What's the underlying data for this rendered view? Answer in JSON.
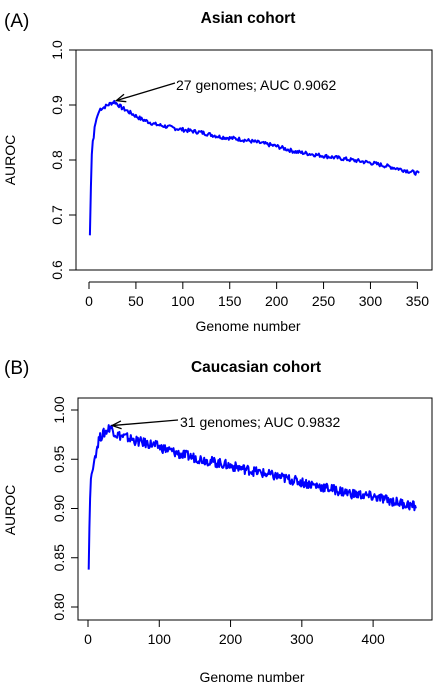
{
  "chart_data": [
    {
      "type": "line",
      "panel_label": "(A)",
      "title": "Asian cohort",
      "xlabel": "Genome number",
      "ylabel": "AUROC",
      "xlim": [
        0,
        356
      ],
      "ylim": [
        0.6,
        1.0
      ],
      "xticks": [
        0,
        50,
        100,
        150,
        200,
        250,
        300,
        350
      ],
      "yticks": [
        0.6,
        0.7,
        0.8,
        0.9,
        1.0
      ],
      "xtick_labels": [
        "0",
        "50",
        "100",
        "150",
        "200",
        "250",
        "300",
        "350"
      ],
      "ytick_labels": [
        "0.6",
        "0.7",
        "0.8",
        "0.9",
        "1.0"
      ],
      "grid": false,
      "line_color": "#0000ff",
      "annotation": {
        "text": "27 genomes; AUC 0.9062",
        "x": 27,
        "y": 0.9062
      },
      "series": [
        {
          "x": [
            1,
            2,
            3,
            4,
            5,
            6,
            8,
            10,
            12,
            15,
            20,
            27,
            35,
            45,
            55,
            70,
            85,
            100,
            120,
            140,
            160,
            180,
            200,
            220,
            240,
            260,
            280,
            300,
            320,
            340,
            352
          ],
          "values": [
            0.663,
            0.75,
            0.81,
            0.835,
            0.84,
            0.86,
            0.875,
            0.885,
            0.893,
            0.895,
            0.9,
            0.9062,
            0.895,
            0.885,
            0.875,
            0.865,
            0.86,
            0.855,
            0.85,
            0.842,
            0.838,
            0.832,
            0.825,
            0.815,
            0.81,
            0.805,
            0.8,
            0.795,
            0.788,
            0.78,
            0.775
          ]
        }
      ]
    },
    {
      "type": "line",
      "panel_label": "(B)",
      "title": "Caucasian cohort",
      "xlabel": "Genome number",
      "ylabel": "AUROC",
      "xlim": [
        0,
        470
      ],
      "ylim": [
        0.8,
        1.0
      ],
      "xticks": [
        0,
        100,
        200,
        300,
        400
      ],
      "yticks": [
        0.8,
        0.85,
        0.9,
        0.95,
        1.0
      ],
      "xtick_labels": [
        "0",
        "100",
        "200",
        "300",
        "400"
      ],
      "ytick_labels": [
        "0.80",
        "0.85",
        "0.90",
        "0.95",
        "1.00"
      ],
      "grid": false,
      "line_color": "#0000ff",
      "annotation": {
        "text": "31 genomes; AUC 0.9832",
        "x": 31,
        "y": 0.9832
      },
      "series": [
        {
          "x": [
            1,
            2,
            3,
            4,
            5,
            7,
            9,
            12,
            15,
            20,
            25,
            31,
            40,
            55,
            70,
            90,
            110,
            130,
            160,
            190,
            220,
            250,
            280,
            310,
            340,
            370,
            400,
            430,
            460
          ],
          "values": [
            0.838,
            0.88,
            0.91,
            0.93,
            0.935,
            0.94,
            0.95,
            0.96,
            0.97,
            0.975,
            0.978,
            0.9832,
            0.975,
            0.972,
            0.968,
            0.965,
            0.96,
            0.955,
            0.95,
            0.945,
            0.94,
            0.935,
            0.93,
            0.925,
            0.92,
            0.915,
            0.912,
            0.907,
            0.902
          ]
        }
      ]
    }
  ]
}
